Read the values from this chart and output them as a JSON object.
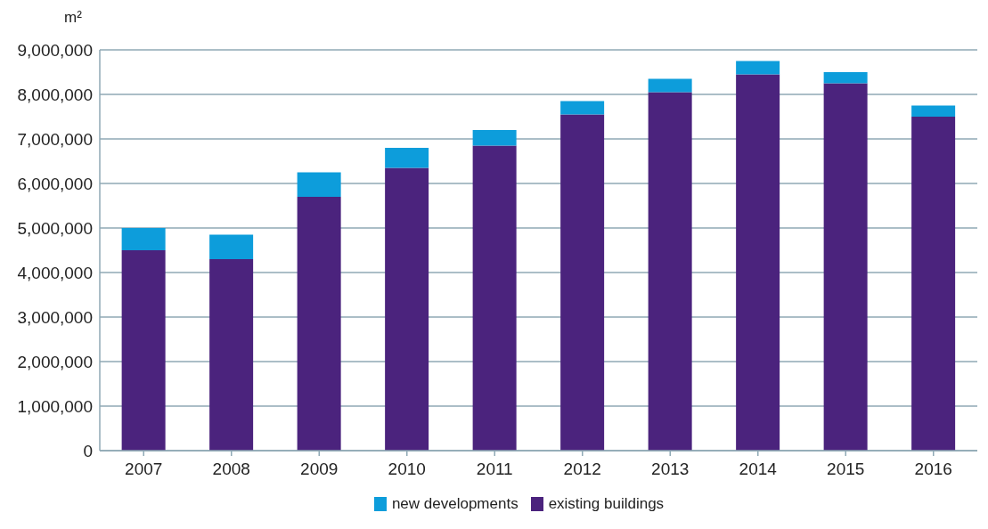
{
  "chart_data": {
    "type": "bar",
    "ylabel": "m²",
    "categories": [
      "2007",
      "2008",
      "2009",
      "2010",
      "2011",
      "2012",
      "2013",
      "2014",
      "2015",
      "2016"
    ],
    "stacked": true,
    "series": [
      {
        "name": "existing buildings",
        "color": "#4b237d",
        "values": [
          4500000,
          4300000,
          5700000,
          6350000,
          6850000,
          7550000,
          8050000,
          8450000,
          8250000,
          7500000
        ]
      },
      {
        "name": "new developments",
        "color": "#0d9ddb",
        "values": [
          500000,
          550000,
          550000,
          450000,
          350000,
          300000,
          300000,
          300000,
          250000,
          250000
        ]
      }
    ],
    "ylim": [
      0,
      9000000
    ],
    "yticks": [
      0,
      {
        "value": 1000000,
        "label": "1,000,000"
      },
      {
        "value": 2000000,
        "label": "2,000,000"
      },
      {
        "value": 3000000,
        "label": "3,000,000"
      },
      {
        "value": 4000000,
        "label": "4,000,000"
      },
      {
        "value": 5000000,
        "label": "5,000,000"
      },
      {
        "value": 6000000,
        "label": "6,000,000"
      },
      {
        "value": 7000000,
        "label": "7,000,000"
      },
      {
        "value": 8000000,
        "label": "8,000,000"
      },
      {
        "value": 9000000,
        "label": "9,000,000"
      }
    ],
    "grid": "y",
    "legend": "bottom"
  }
}
